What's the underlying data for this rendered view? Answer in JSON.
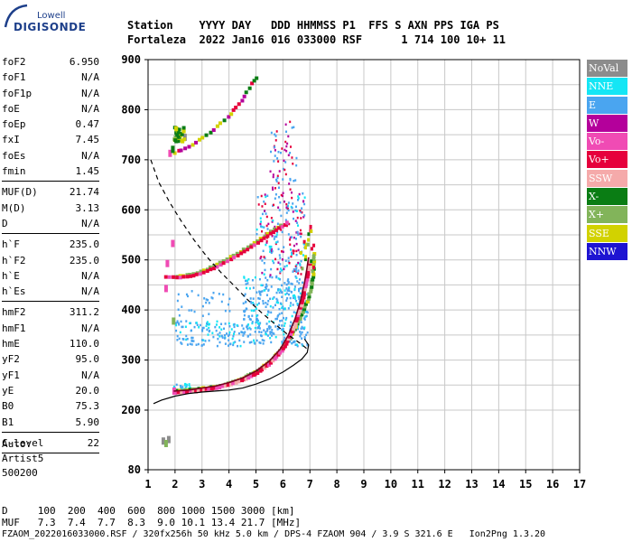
{
  "logo": {
    "top": "Lowell",
    "main": "DIGISONDE"
  },
  "header": {
    "line1": "Station    YYYY DAY   DDD HHMMSS P1  FFS S AXN PPS IGA PS",
    "line2": "Fortaleza  2022 Jan16 016 033000 RSF      1 714 100 10+ 11"
  },
  "params": [
    [
      [
        "foF2",
        "6.950"
      ],
      [
        "foF1",
        "N/A"
      ],
      [
        "foF1p",
        "N/A"
      ],
      [
        "foE",
        "N/A"
      ],
      [
        "foEp",
        "0.47"
      ],
      [
        "fxI",
        "7.45"
      ],
      [
        "foEs",
        "N/A"
      ],
      [
        "fmin",
        "1.45"
      ]
    ],
    [
      [
        "MUF(D)",
        "21.74"
      ],
      [
        "M(D)",
        "3.13"
      ],
      [
        "D",
        "N/A"
      ]
    ],
    [
      [
        "h`F",
        "235.0"
      ],
      [
        "h`F2",
        "235.0"
      ],
      [
        "h`E",
        "N/A"
      ],
      [
        "h`Es",
        "N/A"
      ]
    ],
    [
      [
        "hmF2",
        "311.2"
      ],
      [
        "hmF1",
        "N/A"
      ],
      [
        "hmE",
        "110.0"
      ],
      [
        "yF2",
        "95.0"
      ],
      [
        "yF1",
        "N/A"
      ],
      [
        "yE",
        "20.0"
      ],
      [
        "B0",
        "75.3"
      ],
      [
        "B1",
        "5.90"
      ]
    ],
    [
      [
        "C-level",
        "22"
      ]
    ]
  ],
  "auto": {
    "line1": "Auto:",
    "line2": "Artist5",
    "line3": "500200"
  },
  "legend": [
    {
      "label": "NoVal",
      "color": "#8c8c8c"
    },
    {
      "label": "NNE",
      "color": "#14e6f5"
    },
    {
      "label": "E",
      "color": "#4aa5f0"
    },
    {
      "label": "W",
      "color": "#b4009b"
    },
    {
      "label": "Vo-",
      "color": "#f04bb4"
    },
    {
      "label": "Vo+",
      "color": "#e6003c"
    },
    {
      "label": "SSW",
      "color": "#f5aaaa"
    },
    {
      "label": "X-",
      "color": "#0a7d14"
    },
    {
      "label": "X+",
      "color": "#82b45a"
    },
    {
      "label": "SSE",
      "color": "#d2d200"
    },
    {
      "label": "NNW",
      "color": "#1e14d2"
    }
  ],
  "footer": {
    "line1": "D     100  200  400  600  800 1000 1500 3000 [km]",
    "line2": "MUF   7.3  7.4  7.7  8.3  9.0 10.1 13.4 21.7 [MHz]",
    "line3": "FZAOM_2022016033000.RSF / 320fx256h 50 kHz 5.0 km / DPS-4 FZAOM 904 / 3.9 S 321.6 E   Ion2Png 1.3.20"
  },
  "chart_data": {
    "type": "scatter",
    "xlim": [
      1,
      17
    ],
    "ylim": [
      80,
      900
    ],
    "xticks": [
      "1",
      "2",
      "3",
      "4",
      "5",
      "6",
      "7",
      "8",
      "9",
      "10",
      "11",
      "12",
      "13",
      "14",
      "15",
      "16",
      "17"
    ],
    "yticks": [
      "80",
      "200",
      "300",
      "400",
      "500",
      "600",
      "700",
      "800",
      "900"
    ],
    "grid": true,
    "legend_position": "right",
    "traces": {
      "o_trace": [
        [
          1.95,
          238
        ],
        [
          2.5,
          240
        ],
        [
          3,
          244
        ],
        [
          3.5,
          248
        ],
        [
          4,
          255
        ],
        [
          4.5,
          264
        ],
        [
          5,
          278
        ],
        [
          5.5,
          298
        ],
        [
          5.9,
          322
        ],
        [
          6.2,
          350
        ],
        [
          6.45,
          382
        ],
        [
          6.65,
          418
        ],
        [
          6.8,
          455
        ],
        [
          6.88,
          480
        ],
        [
          6.95,
          505
        ]
      ],
      "x_trace": [
        [
          2.0,
          242
        ],
        [
          2.5,
          244
        ],
        [
          3,
          247
        ],
        [
          3.5,
          251
        ],
        [
          4,
          258
        ],
        [
          4.5,
          268
        ],
        [
          5,
          282
        ],
        [
          5.5,
          303
        ],
        [
          5.9,
          326
        ],
        [
          6.3,
          356
        ],
        [
          6.6,
          390
        ],
        [
          6.85,
          420
        ],
        [
          6.98,
          445
        ],
        [
          7.05,
          470
        ],
        [
          7.08,
          495
        ],
        [
          7.1,
          520
        ]
      ],
      "profile": [
        [
          1.2,
          213
        ],
        [
          1.5,
          220
        ],
        [
          2,
          228
        ],
        [
          2.5,
          233
        ],
        [
          3,
          236
        ],
        [
          3.5,
          238
        ],
        [
          4,
          240
        ],
        [
          4.5,
          244
        ],
        [
          5,
          252
        ],
        [
          5.5,
          262
        ],
        [
          6,
          276
        ],
        [
          6.4,
          290
        ],
        [
          6.7,
          302
        ],
        [
          6.9,
          315
        ],
        [
          6.95,
          330
        ],
        [
          6.8,
          342
        ]
      ],
      "muf_curve": [
        [
          1.1,
          700
        ],
        [
          1.4,
          655
        ],
        [
          1.8,
          615
        ],
        [
          2.2,
          580
        ],
        [
          2.7,
          540
        ],
        [
          3.2,
          505
        ],
        [
          3.7,
          475
        ],
        [
          4.2,
          448
        ],
        [
          4.7,
          420
        ],
        [
          5.2,
          395
        ],
        [
          5.7,
          372
        ],
        [
          6.2,
          350
        ],
        [
          6.6,
          335
        ],
        [
          6.95,
          320
        ]
      ],
      "f2_2hop_o": [
        [
          1.6,
          470
        ],
        [
          2,
          468
        ],
        [
          2.5,
          471
        ],
        [
          3,
          478
        ],
        [
          3.5,
          490
        ],
        [
          4,
          505
        ],
        [
          4.5,
          520
        ],
        [
          5,
          538
        ],
        [
          5.5,
          556
        ],
        [
          5.9,
          570
        ],
        [
          6.2,
          582
        ]
      ],
      "f2_2hop_x": [
        [
          1.9,
          470
        ],
        [
          2.5,
          474
        ],
        [
          3,
          482
        ],
        [
          3.5,
          494
        ],
        [
          4,
          509
        ],
        [
          4.5,
          524
        ],
        [
          5,
          542
        ],
        [
          5.5,
          560
        ],
        [
          6,
          578
        ]
      ],
      "f2_3hop": [
        [
          1.95,
          718
        ],
        [
          2.3,
          726
        ],
        [
          2.7,
          738
        ],
        [
          3.1,
          752
        ],
        [
          3.5,
          770
        ],
        [
          3.9,
          790
        ],
        [
          4.2,
          808
        ],
        [
          4.5,
          830
        ],
        [
          4.8,
          855
        ],
        [
          5.0,
          872
        ]
      ]
    }
  }
}
